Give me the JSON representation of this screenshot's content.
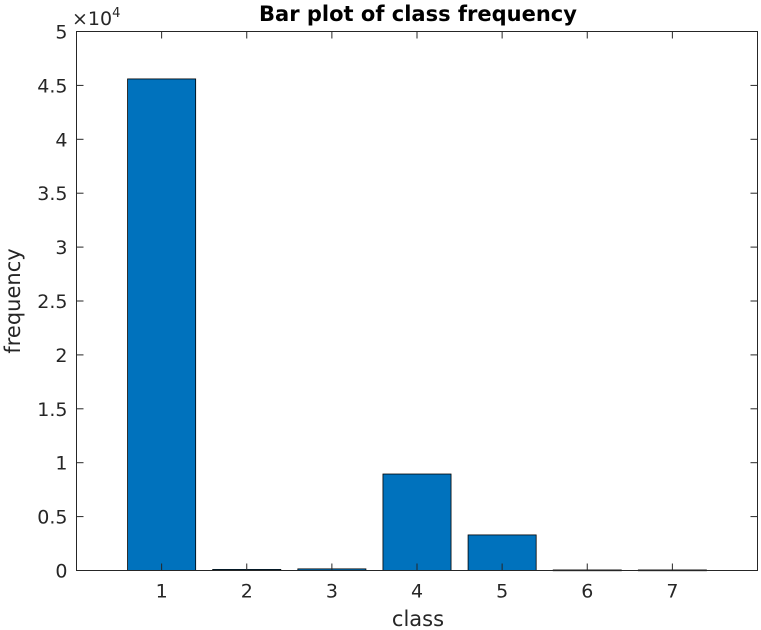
{
  "chart_data": {
    "type": "bar",
    "title": "Bar plot of class frequency",
    "xlabel": "class",
    "ylabel": "frequency",
    "categories": [
      "1",
      "2",
      "3",
      "4",
      "5",
      "6",
      "7"
    ],
    "values": [
      45600,
      100,
      150,
      8950,
      3300,
      50,
      50
    ],
    "xlim": [
      0,
      8
    ],
    "ylim": [
      0,
      50000
    ],
    "y_scale_multiplier": "×10",
    "y_scale_exponent": "4",
    "yticks": [
      "0",
      "0.5",
      "1",
      "1.5",
      "2",
      "2.5",
      "3",
      "3.5",
      "4",
      "4.5",
      "5"
    ],
    "bar_color": "#0072bd",
    "grid": false,
    "legend": "none"
  }
}
